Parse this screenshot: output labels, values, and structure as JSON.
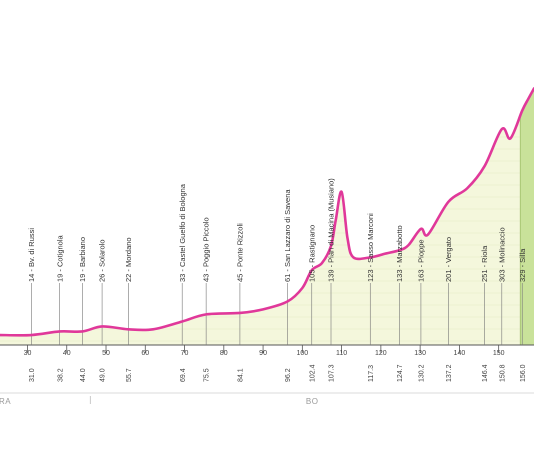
{
  "chart_data": {
    "type": "area",
    "title": "",
    "xlabel": "",
    "ylabel": "",
    "line_color": "#e0389a",
    "fill_color": "#f4f7dc",
    "climb_fill_color": "#c9e29a",
    "x_ticks": [
      30,
      40,
      50,
      60,
      70,
      80,
      90,
      100,
      110,
      120,
      130,
      140,
      150
    ],
    "xlim": [
      23,
      159
    ],
    "ylim": [
      0,
      400
    ],
    "checkpoints": [
      {
        "km": "31.0",
        "x": 31.0,
        "label": "14 - Bv. di Russi"
      },
      {
        "km": "38.2",
        "x": 38.2,
        "label": "19 - Cotignola"
      },
      {
        "km": "44.0",
        "x": 44.0,
        "label": "19 - Barbiano"
      },
      {
        "km": "49.0",
        "x": 49.0,
        "label": "26 - Solarolo"
      },
      {
        "km": "55.7",
        "x": 55.7,
        "label": "22 - Mordano"
      },
      {
        "km": "69.4",
        "x": 69.4,
        "label": "33 - Castel Guelfo di Bologna"
      },
      {
        "km": "75.5",
        "x": 75.5,
        "label": "43 - Poggio Piccolo"
      },
      {
        "km": "84.1",
        "x": 84.1,
        "label": "45 - Ponte Rizzoli"
      },
      {
        "km": "96.2",
        "x": 96.2,
        "label": "61 - San Lazzaro di Savena"
      },
      {
        "km": "102.4",
        "x": 102.4,
        "label": "105 - Rastignano"
      },
      {
        "km": "107.3",
        "x": 107.3,
        "label": "139 - Pian di Macina (Musiano)"
      },
      {
        "km": "117.3",
        "x": 117.3,
        "label": "123 - Sasso Marconi"
      },
      {
        "km": "124.7",
        "x": 124.7,
        "label": "133 - Marzabotto"
      },
      {
        "km": "130.2",
        "x": 130.2,
        "label": "163 - Pioppe"
      },
      {
        "km": "137.2",
        "x": 137.2,
        "label": "201 - Vergato"
      },
      {
        "km": "146.4",
        "x": 146.4,
        "label": "251 - Riola"
      },
      {
        "km": "150.8",
        "x": 150.8,
        "label": "303 - Molinaccio"
      },
      {
        "km": "156.0",
        "x": 156.0,
        "label": "329 - Silla"
      }
    ],
    "profile": {
      "x": [
        23,
        31,
        38.2,
        44,
        49,
        55.7,
        62,
        69.4,
        75.5,
        84.1,
        90,
        96.2,
        100,
        102.4,
        105,
        107.3,
        108.5,
        110,
        111.5,
        113,
        117.3,
        121,
        124.7,
        127,
        130.2,
        132,
        137.2,
        142,
        146.4,
        150.8,
        153,
        156,
        157.5,
        159
      ],
      "y": [
        14,
        14,
        19,
        19,
        26,
        22,
        22,
        33,
        43,
        45,
        50,
        61,
        80,
        105,
        115,
        139,
        175,
        215,
        150,
        123,
        123,
        128,
        133,
        140,
        163,
        155,
        201,
        220,
        251,
        303,
        290,
        329,
        345,
        360
      ]
    },
    "regions": [
      {
        "label": "RA",
        "from": 23,
        "to": 46
      },
      {
        "label": "BO",
        "from": 46,
        "to": 159
      }
    ],
    "climb_start": 155.5
  }
}
